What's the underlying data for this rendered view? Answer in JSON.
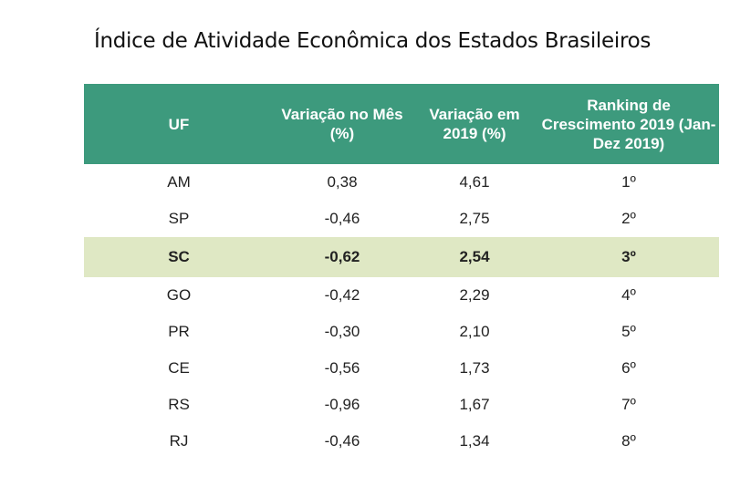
{
  "title": "Índice de Atividade Econômica dos Estados Brasileiros",
  "colors": {
    "header": "#3d9a7d",
    "highlight": "#dfe8c4"
  },
  "headers": [
    "UF",
    "Variação no Mês (%)",
    "Variação em 2019 (%)",
    "Ranking de Crescimento 2019 (Jan-Dez 2019)"
  ],
  "rows": [
    {
      "uf": "AM",
      "mes": "0,38",
      "ano": "4,61",
      "rank": "1º"
    },
    {
      "uf": "SP",
      "mes": "-0,46",
      "ano": "2,75",
      "rank": "2º"
    },
    {
      "uf": "SC",
      "mes": "-0,62",
      "ano": "2,54",
      "rank": "3º",
      "highlighted": true
    },
    {
      "uf": "GO",
      "mes": "-0,42",
      "ano": "2,29",
      "rank": "4º"
    },
    {
      "uf": "PR",
      "mes": "-0,30",
      "ano": "2,10",
      "rank": "5º"
    },
    {
      "uf": "CE",
      "mes": "-0,56",
      "ano": "1,73",
      "rank": "6º"
    },
    {
      "uf": "RS",
      "mes": "-0,96",
      "ano": "1,67",
      "rank": "7º"
    },
    {
      "uf": "RJ",
      "mes": "-0,46",
      "ano": "1,34",
      "rank": "8º"
    }
  ]
}
